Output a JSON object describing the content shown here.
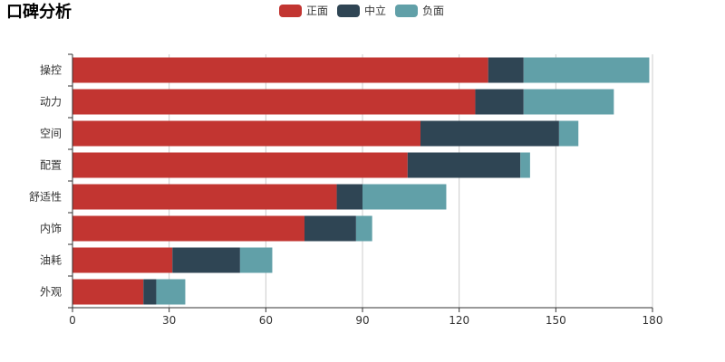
{
  "chart_data": {
    "type": "bar",
    "orientation": "horizontal",
    "stacked": true,
    "title": "口碑分析",
    "categories": [
      "操控",
      "动力",
      "空间",
      "配置",
      "舒适性",
      "内饰",
      "油耗",
      "外观"
    ],
    "series": [
      {
        "name": "正面",
        "color": "#c23531",
        "values": [
          129,
          125,
          108,
          104,
          82,
          72,
          31,
          22
        ]
      },
      {
        "name": "中立",
        "color": "#2f4554",
        "values": [
          11,
          15,
          43,
          35,
          8,
          16,
          21,
          4
        ]
      },
      {
        "name": "负面",
        "color": "#61a0a8",
        "values": [
          39,
          28,
          6,
          3,
          26,
          5,
          10,
          9
        ]
      }
    ],
    "xlim": [
      0,
      180
    ],
    "xticks": [
      0,
      30,
      60,
      90,
      120,
      150,
      180
    ],
    "grid": true,
    "legend_position": "top-center"
  }
}
